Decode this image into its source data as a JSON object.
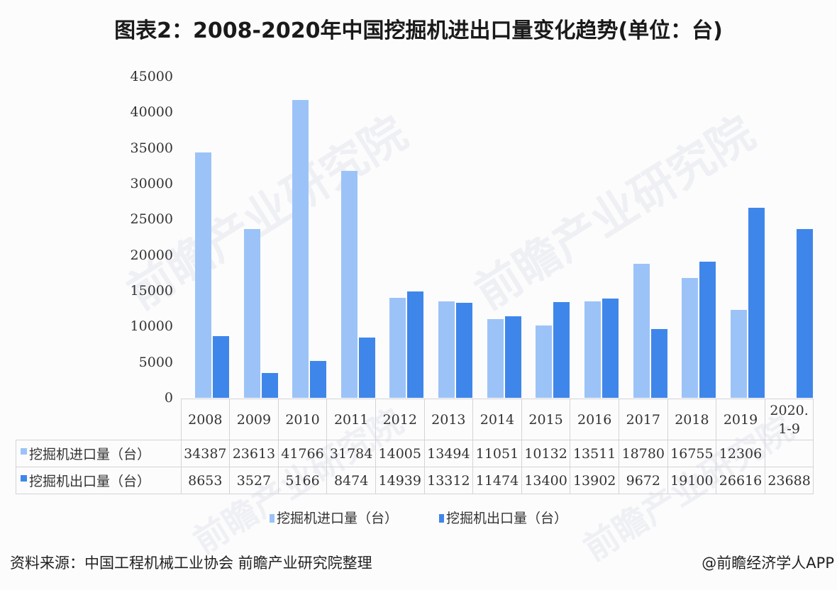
{
  "title": "图表2：2008-2020年中国挖掘机进出口量变化趋势(单位：台)",
  "watermark": "前瞻产业研究院",
  "colors": {
    "import": "#9cc3f7",
    "export": "#3f86ea"
  },
  "y_axis": {
    "ticks": [
      "45000",
      "40000",
      "35000",
      "30000",
      "25000",
      "20000",
      "15000",
      "10000",
      "5000",
      "0"
    ]
  },
  "table": {
    "categories": [
      "2008",
      "2009",
      "2010",
      "2011",
      "2012",
      "2013",
      "2014",
      "2015",
      "2016",
      "2017",
      "2018",
      "2019",
      "2020.\n1-9"
    ],
    "rows": [
      {
        "label": "挖掘机进口量（台）",
        "values": [
          "34387",
          "23613",
          "41766",
          "31784",
          "14005",
          "13494",
          "11051",
          "10132",
          "13511",
          "18780",
          "16755",
          "12306",
          ""
        ]
      },
      {
        "label": "挖掘机出口量（台）",
        "values": [
          "8653",
          "3527",
          "5166",
          "8474",
          "14939",
          "13312",
          "11474",
          "13400",
          "13902",
          "9672",
          "19100",
          "26616",
          "23688"
        ]
      }
    ]
  },
  "legend": {
    "import": "挖掘机进口量（台）",
    "export": "挖掘机出口量（台）"
  },
  "footer": {
    "source": "资料来源：中国工程机械工业协会 前瞻产业研究院整理",
    "credit": "@前瞻经济学人APP"
  },
  "chart_data": {
    "type": "bar",
    "title": "图表2：2008-2020年中国挖掘机进出口量变化趋势(单位：台)",
    "xlabel": "",
    "ylabel": "台",
    "ylim": [
      0,
      45000
    ],
    "yticks": [
      0,
      5000,
      10000,
      15000,
      20000,
      25000,
      30000,
      35000,
      40000,
      45000
    ],
    "grid": false,
    "legend_position": "bottom",
    "categories": [
      "2008",
      "2009",
      "2010",
      "2011",
      "2012",
      "2013",
      "2014",
      "2015",
      "2016",
      "2017",
      "2018",
      "2019",
      "2020.1-9"
    ],
    "series": [
      {
        "name": "挖掘机进口量（台）",
        "values": [
          34387,
          23613,
          41766,
          31784,
          14005,
          13494,
          11051,
          10132,
          13511,
          18780,
          16755,
          12306,
          null
        ]
      },
      {
        "name": "挖掘机出口量（台）",
        "values": [
          8653,
          3527,
          5166,
          8474,
          14939,
          13312,
          11474,
          13400,
          13902,
          9672,
          19100,
          26616,
          23688
        ]
      }
    ]
  }
}
